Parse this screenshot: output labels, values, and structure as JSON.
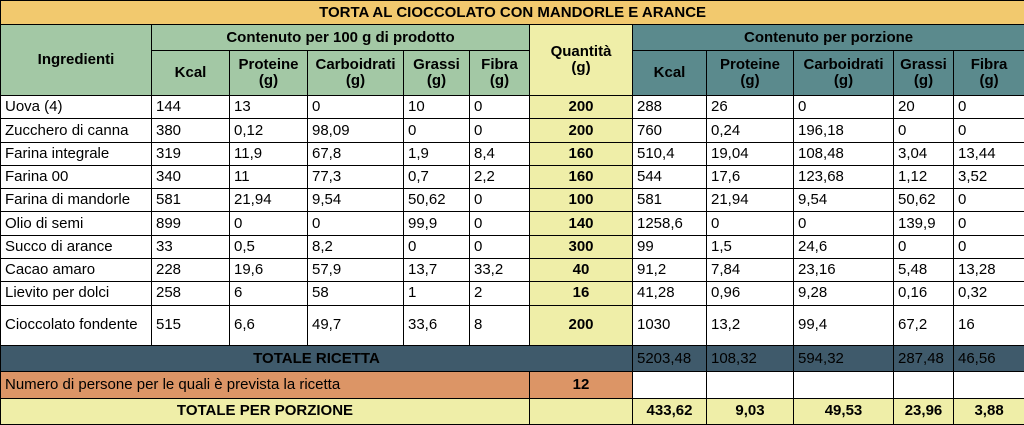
{
  "title": "TORTA AL CIOCCOLATO CON MANDORLE E ARANCE",
  "headers": {
    "ingredients": "Ingredienti",
    "per100": "Contenuto per 100 g di prodotto",
    "quantity": "Quantità",
    "quantity_unit": "(g)",
    "portion": "Contenuto per porzione",
    "cols": [
      "Kcal",
      "Proteine",
      "Carboidrati",
      "Grassi",
      "Fibra"
    ],
    "unit": "(g)"
  },
  "rows": [
    {
      "name": "Uova (4)",
      "per100": [
        "144",
        "13",
        "0",
        "10",
        "0"
      ],
      "qty": "200",
      "portion": [
        "288",
        "26",
        "0",
        "20",
        "0"
      ]
    },
    {
      "name": "Zucchero di canna",
      "per100": [
        "380",
        "0,12",
        "98,09",
        "0",
        "0"
      ],
      "qty": "200",
      "portion": [
        "760",
        "0,24",
        "196,18",
        "0",
        "0"
      ]
    },
    {
      "name": "Farina integrale",
      "per100": [
        "319",
        "11,9",
        "67,8",
        "1,9",
        "8,4"
      ],
      "qty": "160",
      "portion": [
        "510,4",
        "19,04",
        "108,48",
        "3,04",
        "13,44"
      ]
    },
    {
      "name": "Farina 00",
      "per100": [
        "340",
        "11",
        "77,3",
        "0,7",
        "2,2"
      ],
      "qty": "160",
      "portion": [
        "544",
        "17,6",
        "123,68",
        "1,12",
        "3,52"
      ]
    },
    {
      "name": "Farina di mandorle",
      "per100": [
        "581",
        "21,94",
        "9,54",
        "50,62",
        "0"
      ],
      "qty": "100",
      "portion": [
        "581",
        "21,94",
        "9,54",
        "50,62",
        "0"
      ]
    },
    {
      "name": "Olio di semi",
      "per100": [
        "899",
        "0",
        "0",
        "99,9",
        "0"
      ],
      "qty": "140",
      "portion": [
        "1258,6",
        "0",
        "0",
        "139,9",
        "0"
      ]
    },
    {
      "name": "Succo di arance",
      "per100": [
        "33",
        "0,5",
        "8,2",
        "0",
        "0"
      ],
      "qty": "300",
      "portion": [
        "99",
        "1,5",
        "24,6",
        "0",
        "0"
      ]
    },
    {
      "name": "Cacao amaro",
      "per100": [
        "228",
        "19,6",
        "57,9",
        "13,7",
        "33,2"
      ],
      "qty": "40",
      "portion": [
        "91,2",
        "7,84",
        "23,16",
        "5,48",
        "13,28"
      ]
    },
    {
      "name": "Lievito per dolci",
      "per100": [
        "258",
        "6",
        "58",
        "1",
        "2"
      ],
      "qty": "16",
      "portion": [
        "41,28",
        "0,96",
        "9,28",
        "0,16",
        "0,32"
      ]
    },
    {
      "name": "Cioccolato fondente",
      "per100": [
        "515",
        "6,6",
        "49,7",
        "33,6",
        "8"
      ],
      "qty": "200",
      "portion": [
        "1030",
        "13,2",
        "99,4",
        "67,2",
        "16"
      ]
    }
  ],
  "totale_ricetta": {
    "label": "TOTALE RICETTA",
    "values": [
      "5203,48",
      "108,32",
      "594,32",
      "287,48",
      "46,56"
    ]
  },
  "persone": {
    "label": "Numero di persone per le quali è prevista la ricetta",
    "value": "12"
  },
  "totale_porzione": {
    "label": "TOTALE PER PORZIONE",
    "values": [
      "433,62",
      "9,03",
      "49,53",
      "23,96",
      "3,88"
    ]
  },
  "colors": {
    "title": "#f2c96e",
    "header_green": "#a3c8a5",
    "header_teal": "#5b8a8d",
    "quantity": "#efeea8",
    "totale": "#3f5a6b",
    "persone": "#dc9566"
  }
}
